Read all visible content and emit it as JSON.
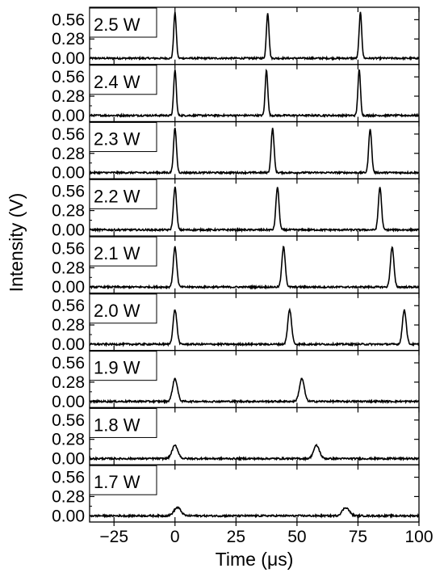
{
  "chart_data": {
    "type": "line",
    "layout": "stacked-panels",
    "xlabel": "Time (μs)",
    "ylabel": "Intensity (V)",
    "xlim": [
      -35,
      100
    ],
    "xticks": [
      -25,
      0,
      25,
      50,
      75,
      100
    ],
    "xtick_labels": [
      "−25",
      "0",
      "25",
      "50",
      "75",
      "100"
    ],
    "ylim": [
      -0.09,
      0.74
    ],
    "yticks": [
      0.0,
      0.28,
      0.56
    ],
    "ytick_labels": [
      "0.00",
      "0.28",
      "0.56"
    ],
    "grid": false,
    "legend": "none",
    "line_color": "#000000",
    "panels": [
      {
        "label": "2.5 W",
        "pulse_times": [
          0,
          38,
          76
        ],
        "peak": 0.66,
        "width": 0.75
      },
      {
        "label": "2.4 W",
        "pulse_times": [
          0,
          37.5,
          75.5
        ],
        "peak": 0.66,
        "width": 0.75
      },
      {
        "label": "2.3 W",
        "pulse_times": [
          0,
          40,
          80
        ],
        "peak": 0.64,
        "width": 0.85
      },
      {
        "label": "2.2 W",
        "pulse_times": [
          0,
          42,
          84
        ],
        "peak": 0.62,
        "width": 0.9
      },
      {
        "label": "2.1 W",
        "pulse_times": [
          0,
          44.5,
          89
        ],
        "peak": 0.58,
        "width": 1.0
      },
      {
        "label": "2.0 W",
        "pulse_times": [
          0,
          47,
          94
        ],
        "peak": 0.5,
        "width": 1.1
      },
      {
        "label": "1.9 W",
        "pulse_times": [
          0,
          52
        ],
        "peak": 0.33,
        "width": 1.4
      },
      {
        "label": "1.8 W",
        "pulse_times": [
          0,
          58
        ],
        "peak": 0.19,
        "width": 1.7
      },
      {
        "label": "1.7 W",
        "pulse_times": [
          1,
          70
        ],
        "peak": 0.12,
        "width": 2.0
      }
    ]
  }
}
